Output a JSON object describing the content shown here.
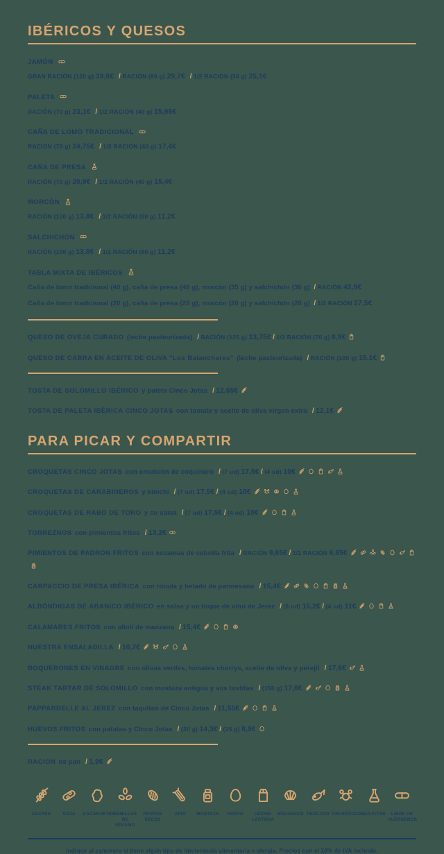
{
  "colors": {
    "background": "#3A564D",
    "gold": "#D8A56F",
    "navy": "#1E3B5E"
  },
  "footer": "Indique al camarero si tiene algún tipo de intolerancia alimentaria o alergia. Precios con el 10% de IVA incluido.",
  "sections": [
    {
      "title": "IBÉRICOS Y QUESOS",
      "items": [
        {
          "layout": "two",
          "name": "JAMÓN",
          "icons": [
            "libre-alergenos"
          ],
          "prices": [
            {
              "label": "GRAN RACIÓN (120 g)",
              "value": "39,6€"
            },
            {
              "label": "RACIÓN (80 g)",
              "value": "29,7€"
            },
            {
              "label": "1/2 RACIÓN (50 g)",
              "value": "25,1€"
            }
          ]
        },
        {
          "layout": "two",
          "name": "PALETA",
          "icons": [
            "libre-alergenos"
          ],
          "prices": [
            {
              "label": "RACIÓN (70 g)",
              "value": "23,1€"
            },
            {
              "label": "1/2 RACIÓN (40 g)",
              "value": "15,95€"
            }
          ]
        },
        {
          "layout": "two",
          "name": "CAÑA DE LOMO TRADICIONAL",
          "icons": [
            "libre-alergenos"
          ],
          "prices": [
            {
              "label": "RACIÓN (70 g)",
              "value": "24,75€"
            },
            {
              "label": "1/2 RACIÓN (40 g)",
              "value": "17,4€"
            }
          ]
        },
        {
          "layout": "two",
          "name": "CAÑA DE PRESA",
          "icons": [
            "sulfitos"
          ],
          "prices": [
            {
              "label": "RACIÓN (70 g)",
              "value": "20,9€"
            },
            {
              "label": "1/2 RACIÓN (40 g)",
              "value": "15,4€"
            }
          ]
        },
        {
          "layout": "two",
          "name": "MORCÓN",
          "icons": [
            "sulfitos"
          ],
          "prices": [
            {
              "label": "RACIÓN (100 g)",
              "value": "13,8€"
            },
            {
              "label": "1/2 RACIÓN (60 g)",
              "value": "11,2€"
            }
          ]
        },
        {
          "layout": "two",
          "name": "SALCHICHÓN",
          "icons": [
            "libre-alergenos"
          ],
          "prices": [
            {
              "label": "RACIÓN (100 g)",
              "value": "13,8€"
            },
            {
              "label": "1/2 RACIÓN (60 g)",
              "value": "11,2€"
            }
          ]
        },
        {
          "layout": "tabla",
          "name": "TABLA MIXTA DE IBÉRICOS",
          "icons": [
            "sulfitos"
          ],
          "sublines": [
            {
              "desc": "Caña de lomo tradicional (40 g), caña de presa (40 g), morcón (35 g) y salchichón (30 g)",
              "price": {
                "label": "RACIÓN",
                "value": "42,9€"
              }
            },
            {
              "desc": "Caña de lomo tradicional (20 g), caña de presa (20 g), morcón (20 g) y salchichón (20 g)",
              "price": {
                "label": "1/2 RACIÓN",
                "value": "27,5€"
              }
            }
          ]
        },
        {
          "divider": true
        },
        {
          "layout": "one",
          "name": "QUESO DE OVEJA CURADO",
          "desc": "(leche pasteurizada)",
          "icons": [
            "leche"
          ],
          "prices": [
            {
              "label": "RACIÓN (125 g)",
              "value": "13,75€"
            },
            {
              "label": "1/2 RACIÓN (70 g)",
              "value": "8,9€"
            }
          ]
        },
        {
          "layout": "one",
          "name": "QUESO DE CABRA EN ACEITE DE OLIVA \"Los Balanchares\"",
          "desc": "(leche pasteurizada)",
          "icons": [
            "leche"
          ],
          "prices": [
            {
              "label": "RACIÓN (100 g)",
              "value": "15,1€"
            }
          ]
        },
        {
          "divider": true
        },
        {
          "layout": "one",
          "name": "TOSTA DE SOLOMILLO IBÉRICO",
          "desc": "y paleta Cinco Jotas",
          "icons": [
            "gluten"
          ],
          "prices": [
            {
              "label": "",
              "value": "12,65€"
            }
          ]
        },
        {
          "layout": "one",
          "name": "TOSTA DE PALETA IBÉRICA CINCO JOTAS",
          "desc": "con tomate y aceite de oliva virgen extra",
          "icons": [
            "gluten"
          ],
          "prices": [
            {
              "label": "",
              "value": "12,1€"
            }
          ]
        }
      ]
    },
    {
      "title": "PARA PICAR Y COMPARTIR",
      "items": [
        {
          "layout": "one",
          "name": "CROQUETAS CINCO JOTAS",
          "desc": "con emulsión de coquinero",
          "icons": [
            "gluten",
            "huevo",
            "leche",
            "pescado",
            "sulfitos"
          ],
          "prices": [
            {
              "label": "(7 ud)",
              "value": "17,5€"
            },
            {
              "label": "(4 ud)",
              "value": "10€"
            }
          ]
        },
        {
          "layout": "one",
          "name": "CROQUETAS DE CARABINEROS",
          "desc": "y kimchi",
          "icons": [
            "gluten",
            "crustaceos",
            "moluscos",
            "huevo",
            "sulfitos"
          ],
          "prices": [
            {
              "label": "(7 ud)",
              "value": "17,5€"
            },
            {
              "label": "(4 ud)",
              "value": "10€"
            }
          ]
        },
        {
          "layout": "one",
          "name": "CROQUETAS DE RABO DE TORO",
          "desc": "y su salsa",
          "icons": [
            "gluten",
            "huevo",
            "leche",
            "sulfitos"
          ],
          "prices": [
            {
              "label": "(7 ud)",
              "value": "17,5€"
            },
            {
              "label": "(4 ud)",
              "value": "10€"
            }
          ]
        },
        {
          "layout": "one",
          "name": "TORREZNOS",
          "desc": "con pimientos fritos",
          "icons": [
            "libre-alergenos"
          ],
          "prices": [
            {
              "label": "",
              "value": "13,2€"
            }
          ]
        },
        {
          "layout": "one",
          "name": "PIMIENTOS DE PADRÓN FRITOS",
          "desc": "con escamas de cebolla frita",
          "icons": [
            "gluten",
            "soja",
            "sesamo",
            "frutos-secos",
            "huevo",
            "pescado",
            "leche",
            "mostaza"
          ],
          "prices": [
            {
              "label": "RACIÓN",
              "value": "9,65€"
            },
            {
              "label": "1/2 RACIÓN",
              "value": "6,65€"
            }
          ]
        },
        {
          "layout": "one",
          "name": "CARPACCIO DE PRESA IBÉRICA",
          "desc": "con rúcula y helado de parmesano",
          "icons": [
            "gluten",
            "soja",
            "frutos-secos",
            "huevo",
            "leche",
            "mostaza",
            "sulfitos"
          ],
          "prices": [
            {
              "label": "",
              "value": "15,4€"
            }
          ]
        },
        {
          "layout": "one",
          "name": "ALBÓNDIGAS DE ABANICO IBÉRICO",
          "desc": "en salsa y un toque de vino de Jerez",
          "icons": [
            "gluten",
            "huevo",
            "leche",
            "sulfitos"
          ],
          "prices": [
            {
              "label": "(8 ud)",
              "value": "15,2€"
            },
            {
              "label": "(4 ud)",
              "value": "11€"
            }
          ]
        },
        {
          "layout": "one",
          "name": "CALAMARES FRITOS",
          "desc": "con alioli de manzana",
          "icons": [
            "gluten",
            "huevo",
            "leche",
            "moluscos"
          ],
          "prices": [
            {
              "label": "",
              "value": "15,4€"
            }
          ]
        },
        {
          "layout": "one",
          "name": "NUESTRA ENSALADILLA",
          "desc": "",
          "icons": [
            "gluten",
            "crustaceos",
            "pescado",
            "huevo",
            "sulfitos"
          ],
          "prices": [
            {
              "label": "",
              "value": "10,7€"
            }
          ]
        },
        {
          "layout": "one",
          "name": "BOQUERONES EN VINAGRE",
          "desc": "con olivas verdes, tomates cherrys, aceite de oliva y perejil",
          "icons": [
            "pescado",
            "sulfitos"
          ],
          "prices": [
            {
              "label": "",
              "value": "17,6€"
            }
          ]
        },
        {
          "layout": "one",
          "name": "STEAK TARTAR DE SOLOMILLO",
          "desc": "con mostaza antigua y sus tostitas",
          "icons": [
            "gluten",
            "pescado",
            "huevo",
            "mostaza",
            "sulfitos"
          ],
          "prices": [
            {
              "label": "(150 g)",
              "value": "17,6€"
            }
          ]
        },
        {
          "layout": "one",
          "name": "PAPPARDELLE AL JEREZ",
          "desc": "con taquitos de Cinco Jotas",
          "icons": [
            "gluten",
            "huevo",
            "leche",
            "sulfitos"
          ],
          "prices": [
            {
              "label": "",
              "value": "11,55€"
            }
          ]
        },
        {
          "layout": "one",
          "name": "HUEVOS FRITOS",
          "desc": "con patatas y Cinco Jotas",
          "icons": [
            "huevo"
          ],
          "prices": [
            {
              "label": "(30 g)",
              "value": "14,3€"
            },
            {
              "label": "(15 g)",
              "value": "8,9€"
            }
          ]
        },
        {
          "divider": true
        },
        {
          "layout": "one",
          "name": "RACIÓN",
          "desc": "de pan",
          "icons": [
            "gluten"
          ],
          "prices": [
            {
              "label": "",
              "value": "1,9€"
            }
          ]
        }
      ]
    }
  ],
  "legend": [
    {
      "icon": "gluten",
      "label": "GLUTEN"
    },
    {
      "icon": "soja",
      "label": "SOJA"
    },
    {
      "icon": "cacahuetes",
      "label": "CACAHUETES"
    },
    {
      "icon": "sesamo",
      "label": "SEMILLAS DE SÉSAMO"
    },
    {
      "icon": "frutos-secos",
      "label": "FRUTOS SECOS"
    },
    {
      "icon": "apio",
      "label": "APIO"
    },
    {
      "icon": "mostaza",
      "label": "MOSTAZA"
    },
    {
      "icon": "huevo",
      "label": "HUEVO"
    },
    {
      "icon": "leche",
      "label": "LECHE/ LACTOSA"
    },
    {
      "icon": "moluscos",
      "label": "MOLUSCOS"
    },
    {
      "icon": "pescado",
      "label": "PESCADO"
    },
    {
      "icon": "crustaceos",
      "label": "CRUSTÁCEOS"
    },
    {
      "icon": "sulfitos",
      "label": "SULFITOS"
    },
    {
      "icon": "libre-alergenos",
      "label": "LIBRE DE ALÉRGENOS"
    }
  ]
}
